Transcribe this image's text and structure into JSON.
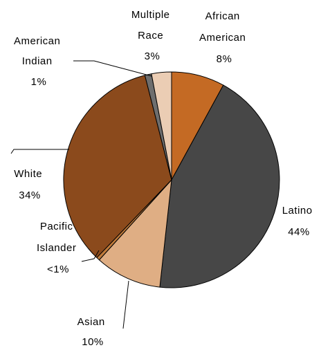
{
  "chart_data": {
    "type": "pie",
    "title": "",
    "slices": [
      {
        "label_lines": [
          "African",
          "American"
        ],
        "pct_label": "8%",
        "value": 8,
        "color": "#C46A24"
      },
      {
        "label_lines": [
          "Latino"
        ],
        "pct_label": "44%",
        "value": 44,
        "color": "#474747"
      },
      {
        "label_lines": [
          "Asian"
        ],
        "pct_label": "10%",
        "value": 10,
        "color": "#DFAE84"
      },
      {
        "label_lines": [
          "Pacific",
          "Islander"
        ],
        "pct_label": "<1%",
        "value": 0.5,
        "color": "#BF7A3A"
      },
      {
        "label_lines": [
          "White"
        ],
        "pct_label": "34%",
        "value": 34,
        "color": "#8B4A1C"
      },
      {
        "label_lines": [
          "American",
          "Indian"
        ],
        "pct_label": "1%",
        "value": 1,
        "color": "#6E6E6E"
      },
      {
        "label_lines": [
          "Multiple",
          "Race"
        ],
        "pct_label": "3%",
        "value": 3,
        "color": "#EBCDB4"
      }
    ]
  }
}
